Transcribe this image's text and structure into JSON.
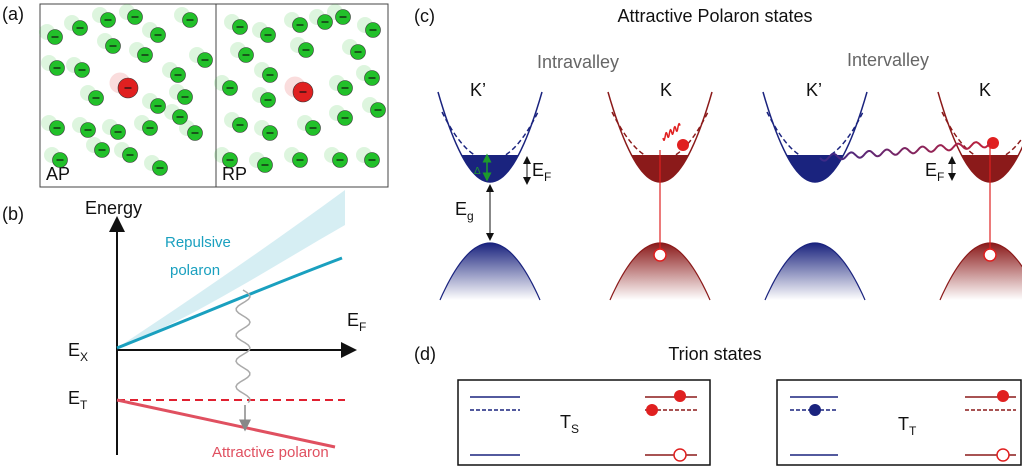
{
  "panel_a": {
    "label": "(a)",
    "left": "AP",
    "right": "RP"
  },
  "panel_b": {
    "label": "(b)",
    "y_axis": "Energy",
    "x_axis": {
      "main": "E",
      "sub": "F"
    },
    "ex": {
      "main": "E",
      "sub": "X"
    },
    "et": {
      "main": "E",
      "sub": "T"
    },
    "repulsive": [
      "Repulsive",
      "polaron"
    ],
    "attractive": "Attractive polaron"
  },
  "panel_c": {
    "label": "(c)",
    "title": "Attractive Polaron states",
    "intravalley": "Intravalley",
    "intervalley": "Intervalley",
    "valleys": [
      "K’",
      "K",
      "K’",
      "K"
    ],
    "ef_left": {
      "main": "E",
      "sub": "F"
    },
    "eg": {
      "main": "E",
      "sub": "g"
    },
    "ef_right": {
      "main": "E",
      "sub": "F"
    },
    "delta": "Δ"
  },
  "panel_d": {
    "label": "(d)",
    "title": "Trion states",
    "ts": {
      "main": "T",
      "sub": "S"
    },
    "tt": {
      "main": "T",
      "sub": "T"
    }
  }
}
